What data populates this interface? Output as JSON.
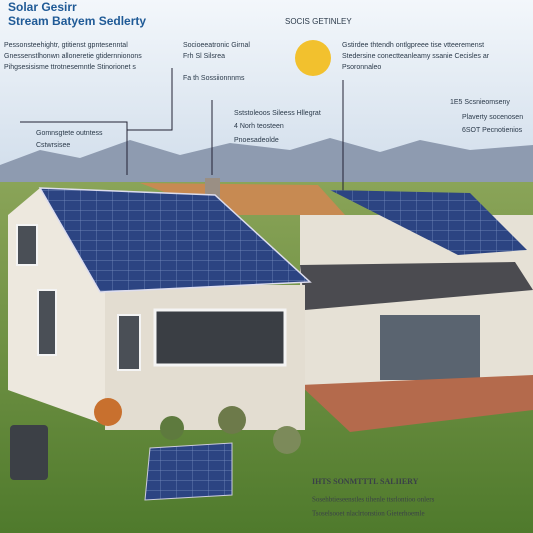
{
  "header": {
    "title": [
      "Solar Gesirr",
      "Stream Batyem Sedlerty"
    ],
    "subtitle": "SOCIS GETINLEY"
  },
  "left_text": [
    "Pessonsteehightr, gtitienst gpntesenntal",
    "Gnessenstlhonwn alloneretie gtidernnionons",
    "Pihgsesisisme ttrotnesemntle Stinorionet s"
  ],
  "top_callouts": [
    "Socioeeatronic Girnal",
    "Frh Sl Silsrea",
    "Fa th Sossiionnnms"
  ],
  "right_text": [
    "Gstirdee thtendh ontlgpreee tise vtteeremenst",
    "Stedersine conectteanleamy ssanie Cecisles ar",
    "Psoronnaleo"
  ],
  "left_callout": [
    "Gomnsgtete outntess",
    "Cstwrsisee"
  ],
  "mid_callouts": [
    "Sststoleoos Sileess Hllegrat",
    "4 Norh teosteen",
    "Pnoesadeolde"
  ],
  "right_callouts": [
    "1E5 Scsnieomseny",
    "Plaverty socenosen",
    "6SOT Pecnotienios"
  ],
  "bottom_caption": {
    "title": "IHTS SONMTTTL SALIIERY",
    "lines": [
      "Sosehbtieseenstles tihenle ttsrlontioo onlers",
      "Tsoselsooet nlaclrtonstion Gieterhoemle"
    ]
  }
}
